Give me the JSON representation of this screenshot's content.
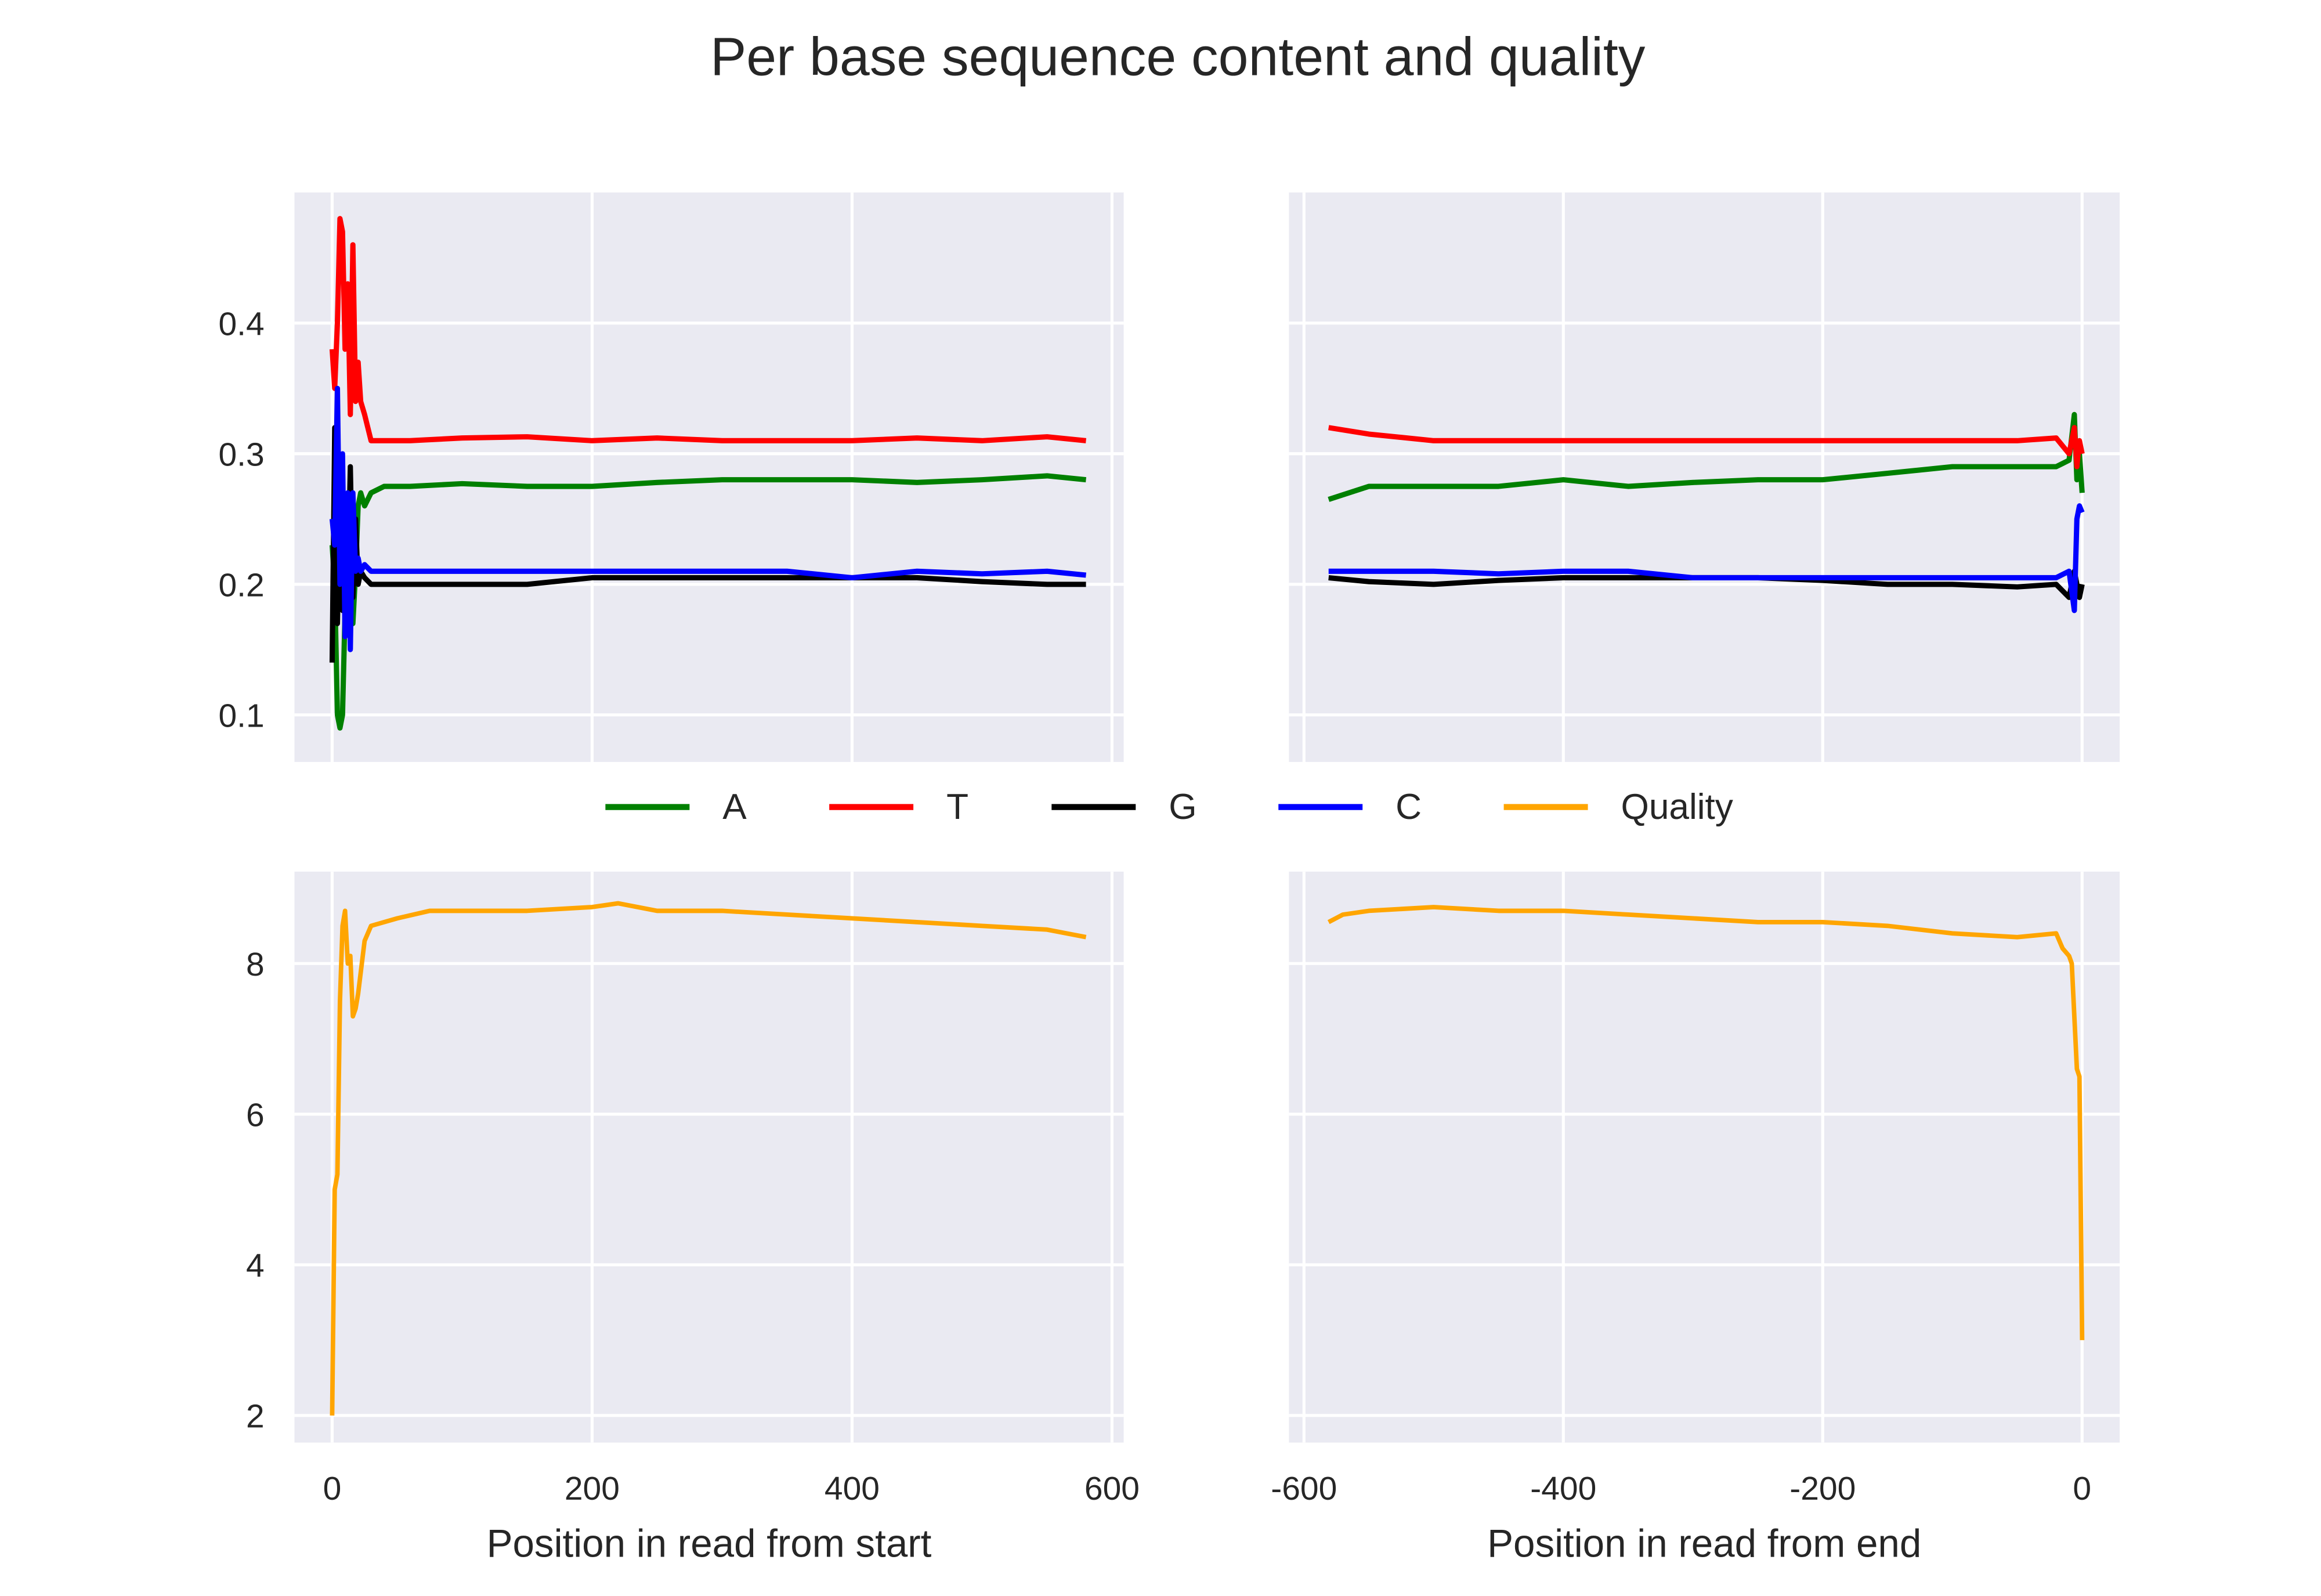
{
  "title": "Per base sequence content and quality",
  "colors": {
    "A": "#008000",
    "T": "#ff0000",
    "G": "#000000",
    "C": "#0000ff",
    "Quality": "#ffa500",
    "panel_bg": "#eaeaf2",
    "grid": "#ffffff"
  },
  "legend": {
    "placement": "center",
    "entries": [
      "A",
      "T",
      "G",
      "C",
      "Quality"
    ]
  },
  "chart_data": [
    {
      "type": "line",
      "panel": "top-left",
      "xlabel": "",
      "ylabel": "",
      "xlim": [
        -29,
        609
      ],
      "ylim": [
        0.064,
        0.5
      ],
      "xticks": [
        0,
        200,
        400,
        600
      ],
      "yticks": [
        0.1,
        0.2,
        0.3,
        0.4
      ],
      "ytick_labels": [
        "0.1",
        "0.2",
        "0.3",
        "0.4"
      ],
      "grid": true,
      "x": [
        0,
        2,
        4,
        6,
        8,
        10,
        12,
        14,
        16,
        18,
        20,
        22,
        25,
        30,
        40,
        60,
        100,
        150,
        200,
        250,
        300,
        350,
        400,
        450,
        500,
        550,
        580
      ],
      "series": [
        {
          "name": "A",
          "values": [
            0.23,
            0.2,
            0.1,
            0.09,
            0.1,
            0.18,
            0.2,
            0.24,
            0.17,
            0.21,
            0.26,
            0.27,
            0.26,
            0.27,
            0.275,
            0.275,
            0.277,
            0.275,
            0.275,
            0.278,
            0.28,
            0.28,
            0.28,
            0.278,
            0.28,
            0.283,
            0.28
          ]
        },
        {
          "name": "T",
          "values": [
            0.38,
            0.35,
            0.4,
            0.48,
            0.47,
            0.38,
            0.43,
            0.33,
            0.46,
            0.34,
            0.37,
            0.34,
            0.33,
            0.31,
            0.31,
            0.31,
            0.312,
            0.313,
            0.31,
            0.312,
            0.31,
            0.31,
            0.31,
            0.312,
            0.31,
            0.313,
            0.31
          ]
        },
        {
          "name": "G",
          "values": [
            0.14,
            0.32,
            0.17,
            0.26,
            0.18,
            0.24,
            0.2,
            0.29,
            0.19,
            0.25,
            0.2,
            0.21,
            0.205,
            0.2,
            0.2,
            0.2,
            0.2,
            0.2,
            0.205,
            0.205,
            0.205,
            0.205,
            0.205,
            0.205,
            0.202,
            0.2,
            0.2
          ]
        },
        {
          "name": "C",
          "values": [
            0.25,
            0.23,
            0.35,
            0.2,
            0.3,
            0.16,
            0.27,
            0.15,
            0.27,
            0.21,
            0.22,
            0.21,
            0.215,
            0.21,
            0.21,
            0.21,
            0.21,
            0.21,
            0.21,
            0.21,
            0.21,
            0.21,
            0.205,
            0.21,
            0.208,
            0.21,
            0.207
          ]
        }
      ]
    },
    {
      "type": "line",
      "panel": "top-right",
      "xlabel": "",
      "ylabel": "",
      "xlim": [
        -611.6,
        29
      ],
      "ylim": [
        0.064,
        0.5
      ],
      "xticks": [
        -600,
        -400,
        -200,
        0
      ],
      "grid": true,
      "x": [
        -581,
        -550,
        -500,
        -450,
        -400,
        -350,
        -300,
        -250,
        -200,
        -150,
        -100,
        -50,
        -20,
        -10,
        -6,
        -4,
        -2,
        0
      ],
      "series": [
        {
          "name": "A",
          "values": [
            0.265,
            0.275,
            0.275,
            0.275,
            0.28,
            0.275,
            0.278,
            0.28,
            0.28,
            0.285,
            0.29,
            0.29,
            0.29,
            0.295,
            0.33,
            0.28,
            0.3,
            0.27
          ]
        },
        {
          "name": "T",
          "values": [
            0.32,
            0.315,
            0.31,
            0.31,
            0.31,
            0.31,
            0.31,
            0.31,
            0.31,
            0.31,
            0.31,
            0.31,
            0.312,
            0.3,
            0.32,
            0.29,
            0.31,
            0.3
          ]
        },
        {
          "name": "G",
          "values": [
            0.205,
            0.202,
            0.2,
            0.203,
            0.205,
            0.205,
            0.205,
            0.205,
            0.203,
            0.2,
            0.2,
            0.198,
            0.2,
            0.19,
            0.21,
            0.2,
            0.19,
            0.2
          ]
        },
        {
          "name": "C",
          "values": [
            0.21,
            0.21,
            0.21,
            0.208,
            0.21,
            0.21,
            0.205,
            0.205,
            0.205,
            0.205,
            0.205,
            0.205,
            0.205,
            0.21,
            0.18,
            0.25,
            0.26,
            0.255
          ]
        }
      ]
    },
    {
      "type": "line",
      "panel": "bottom-left",
      "xlabel": "Position in read from start",
      "ylabel": "",
      "xlim": [
        -29,
        609
      ],
      "ylim": [
        1.64,
        9.22
      ],
      "xticks": [
        0,
        200,
        400,
        600
      ],
      "xtick_labels": [
        "0",
        "200",
        "400",
        "600"
      ],
      "yticks": [
        2,
        4,
        6,
        8
      ],
      "ytick_labels": [
        "2",
        "4",
        "6",
        "8"
      ],
      "grid": true,
      "x": [
        0,
        2,
        4,
        6,
        8,
        10,
        12,
        14,
        16,
        18,
        20,
        25,
        30,
        50,
        75,
        100,
        150,
        200,
        220,
        250,
        300,
        350,
        400,
        450,
        500,
        550,
        580
      ],
      "series": [
        {
          "name": "Quality",
          "values": [
            2.0,
            5.0,
            5.2,
            7.5,
            8.5,
            8.7,
            8.0,
            8.1,
            7.3,
            7.4,
            7.6,
            8.3,
            8.5,
            8.6,
            8.7,
            8.7,
            8.7,
            8.75,
            8.8,
            8.7,
            8.7,
            8.65,
            8.6,
            8.55,
            8.5,
            8.45,
            8.35
          ]
        }
      ]
    },
    {
      "type": "line",
      "panel": "bottom-right",
      "xlabel": "Position in read from end",
      "ylabel": "",
      "xlim": [
        -611.6,
        29
      ],
      "ylim": [
        1.64,
        9.22
      ],
      "xticks": [
        -600,
        -400,
        -200,
        0
      ],
      "xtick_labels": [
        "-600",
        "-400",
        "-200",
        "0"
      ],
      "grid": true,
      "x": [
        -581,
        -570,
        -550,
        -500,
        -450,
        -400,
        -350,
        -300,
        -250,
        -200,
        -150,
        -100,
        -50,
        -20,
        -15,
        -10,
        -8,
        -4,
        -2,
        0
      ],
      "series": [
        {
          "name": "Quality",
          "values": [
            8.55,
            8.65,
            8.7,
            8.75,
            8.7,
            8.7,
            8.65,
            8.6,
            8.55,
            8.55,
            8.5,
            8.4,
            8.35,
            8.4,
            8.2,
            8.1,
            8.0,
            6.6,
            6.5,
            3.0
          ]
        }
      ]
    }
  ]
}
